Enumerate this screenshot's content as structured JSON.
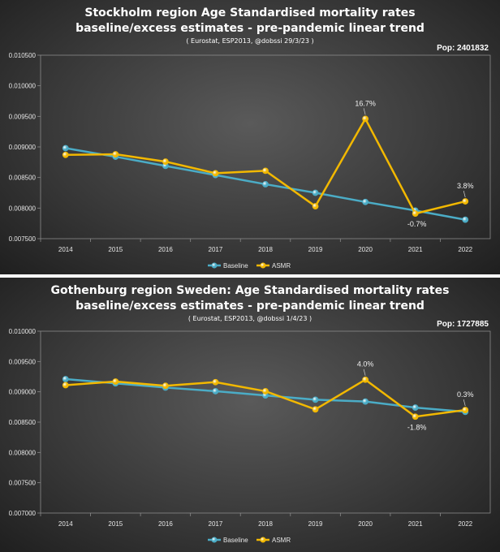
{
  "chart_data": [
    {
      "type": "line",
      "title": "Stockholm region Age Standardised mortality rates",
      "subtitle": "baseline/excess estimates - pre-pandemic linear trend",
      "source": "( Eurostat,  ESP2013, @dobssi 29/3/23 )",
      "population": "Pop: 2401832",
      "categories": [
        "2014",
        "2015",
        "2016",
        "2017",
        "2018",
        "2019",
        "2020",
        "2021",
        "2022"
      ],
      "ylim": [
        0.0075,
        0.0105
      ],
      "yticks": [
        "0.007500",
        "0.008000",
        "0.008500",
        "0.009000",
        "0.009500",
        "0.010000",
        "0.010500"
      ],
      "series": [
        {
          "name": "Baseline",
          "color": "#4bacc6",
          "values": [
            0.00898,
            0.00884,
            0.00869,
            0.00854,
            0.00839,
            0.00825,
            0.0081,
            0.00796,
            0.00781
          ]
        },
        {
          "name": "ASMR",
          "color": "#f2b800",
          "values": [
            0.00887,
            0.00888,
            0.00876,
            0.00857,
            0.00861,
            0.00803,
            0.00946,
            0.00791,
            0.00811
          ]
        }
      ],
      "annotations": [
        {
          "index": 6,
          "text": "16.7%",
          "pos": "above"
        },
        {
          "index": 7,
          "text": "-0.7%",
          "pos": "below"
        },
        {
          "index": 8,
          "text": "3.8%",
          "pos": "above"
        }
      ],
      "legend": "bottom"
    },
    {
      "type": "line",
      "title": "Gothenburg region Sweden: Age Standardised mortality rates",
      "subtitle": "baseline/excess estimates - pre-pandemic linear trend",
      "source": "( Eurostat,  ESP2013, @dobssi 1/4/23 )",
      "population": "Pop: 1727885",
      "categories": [
        "2014",
        "2015",
        "2016",
        "2017",
        "2018",
        "2019",
        "2020",
        "2021",
        "2022"
      ],
      "ylim": [
        0.007,
        0.01
      ],
      "yticks": [
        "0.007000",
        "0.007500",
        "0.008000",
        "0.008500",
        "0.009000",
        "0.009500",
        "0.010000"
      ],
      "series": [
        {
          "name": "Baseline",
          "color": "#4bacc6",
          "values": [
            0.00921,
            0.00914,
            0.00907,
            0.00901,
            0.00894,
            0.00887,
            0.00884,
            0.00874,
            0.00867
          ]
        },
        {
          "name": "ASMR",
          "color": "#f2b800",
          "values": [
            0.00911,
            0.00917,
            0.0091,
            0.00916,
            0.00901,
            0.00871,
            0.0092,
            0.00859,
            0.0087
          ]
        }
      ],
      "annotations": [
        {
          "index": 6,
          "text": "4.0%",
          "pos": "above"
        },
        {
          "index": 7,
          "text": "-1.8%",
          "pos": "below"
        },
        {
          "index": 8,
          "text": "0.3%",
          "pos": "above"
        }
      ],
      "legend": "bottom"
    }
  ]
}
